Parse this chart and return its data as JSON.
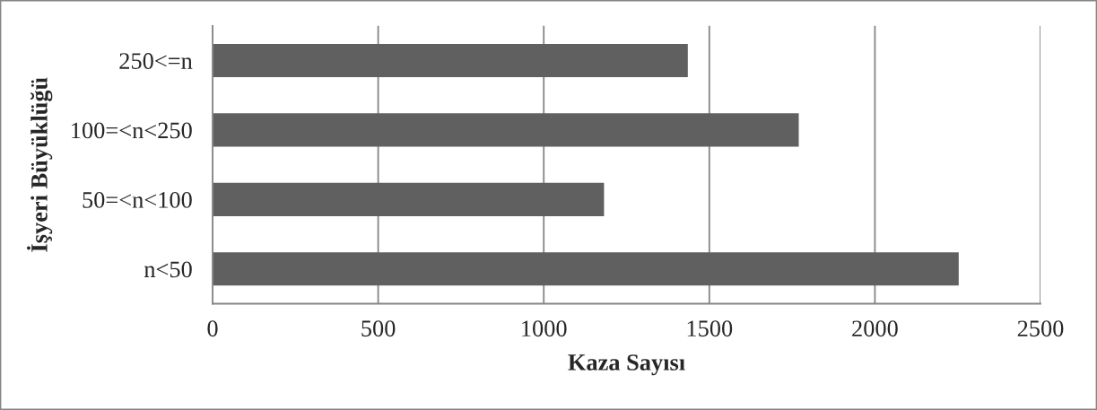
{
  "chart_data": {
    "type": "bar",
    "orientation": "horizontal",
    "xlabel": "Kaza Sayısı",
    "ylabel": "İşyeri Büyüklüğü",
    "categories": [
      "250<=n",
      "100=<n<250",
      "50=<n<100",
      "n<50"
    ],
    "values": [
      1435,
      1770,
      1182,
      2253
    ],
    "color": "#606060",
    "xlim": [
      0,
      2500
    ],
    "xticks": [
      0,
      500,
      1000,
      1500,
      2000,
      2500
    ],
    "grid": "x"
  }
}
